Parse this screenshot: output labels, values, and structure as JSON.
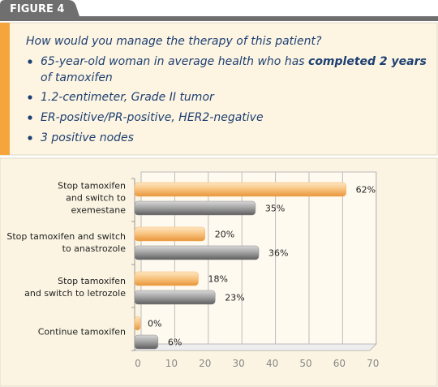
{
  "header": {
    "title": "FIGURE 4"
  },
  "question": "How would you manage the therapy of this patient?",
  "bullets": [
    {
      "text": "65-year-old woman in average health who has ",
      "bold": "completed 2 years",
      "rest": "of tamoxifen"
    },
    {
      "text": "1.2-centimeter, Grade II tumor"
    },
    {
      "text": "ER-positive/PR-positive, HER2-negative"
    },
    {
      "text": "3 positive nodes"
    }
  ],
  "chart_data": {
    "type": "hbar",
    "categories": [
      [
        "Stop tamoxifen",
        "and switch to",
        "exemestane"
      ],
      [
        "Stop tamoxifen and switch",
        "to anastrozole"
      ],
      [
        "Stop tamoxifen",
        "and switch to letrozole"
      ],
      [
        "Continue tamoxifen"
      ]
    ],
    "series": [
      {
        "color": "#f6b25e",
        "values": [
          62,
          20,
          18,
          0
        ],
        "value_labels": [
          "62%",
          "20%",
          "18%",
          "0%"
        ]
      },
      {
        "color": "#8a8a8a",
        "values": [
          35,
          36,
          23,
          6
        ],
        "value_labels": [
          "35%",
          "36%",
          "23%",
          "6%"
        ]
      }
    ],
    "xlim": [
      0,
      70
    ],
    "xticks": [
      0,
      10,
      20,
      30,
      40,
      50,
      60,
      70
    ],
    "grid": true
  }
}
